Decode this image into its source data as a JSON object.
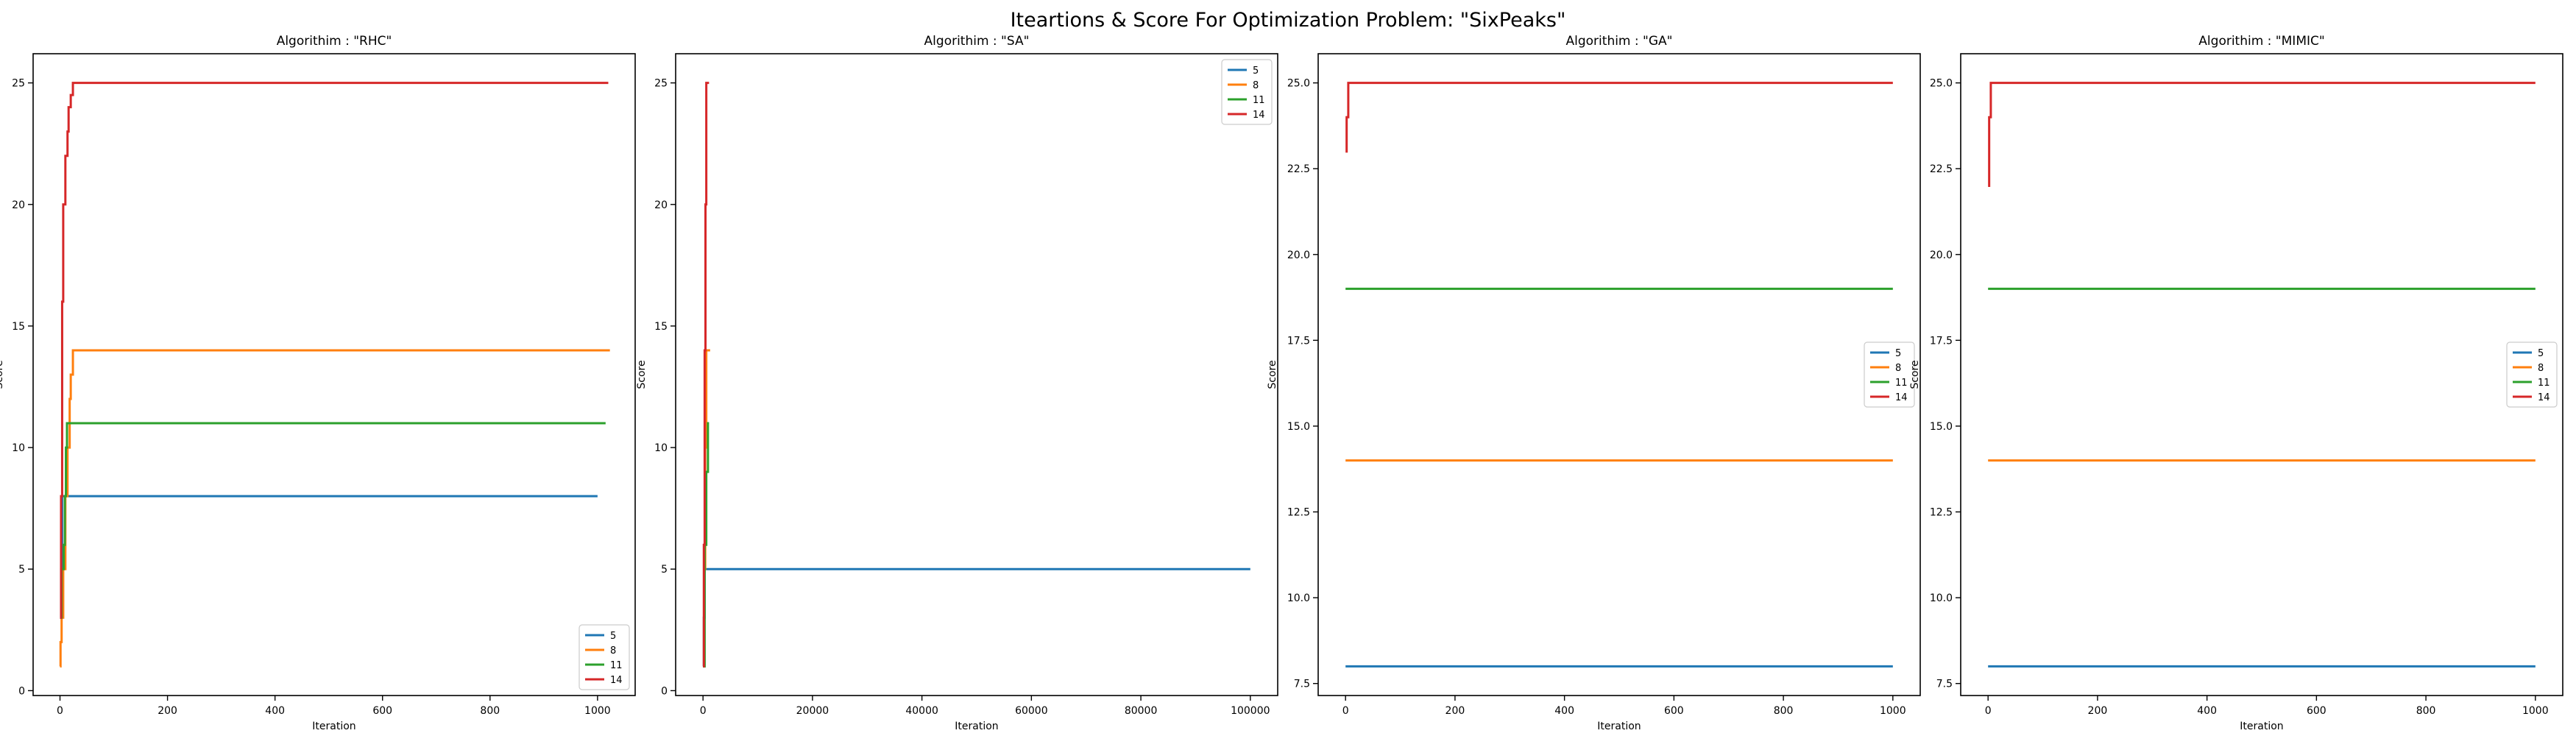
{
  "suptitle": "Iteartions & Score For Optimization Problem: \"SixPeaks\"",
  "legend_colors": {
    "5": "#1f77b4",
    "8": "#ff7f0e",
    "11": "#2ca02c",
    "14": "#d62728"
  },
  "chart_data": [
    {
      "type": "line",
      "title": "Algorithim : \"RHC\"",
      "xlabel": "Iteration",
      "ylabel": "Score",
      "xlim": [
        -50,
        1070
      ],
      "ylim": [
        -0.2,
        26.2
      ],
      "xticks": [
        0,
        200,
        400,
        600,
        800,
        1000
      ],
      "xtick_labels": [
        "0",
        "200",
        "400",
        "600",
        "800",
        "1000"
      ],
      "yticks": [
        0,
        5,
        10,
        15,
        20,
        25
      ],
      "ytick_labels": [
        "0",
        "5",
        "10",
        "15",
        "20",
        "25"
      ],
      "legend": "lower right",
      "series": [
        {
          "name": "5",
          "color": "#1f77b4",
          "x": [
            0,
            2,
            2,
            4,
            4,
            1000
          ],
          "y": [
            3,
            3,
            5,
            5,
            8,
            8
          ]
        },
        {
          "name": "8",
          "color": "#ff7f0e",
          "x": [
            0,
            1,
            1,
            3,
            3,
            6,
            6,
            10,
            10,
            14,
            14,
            18,
            18,
            20,
            20,
            24,
            24,
            1023
          ],
          "y": [
            1,
            1,
            2,
            2,
            3,
            3,
            5,
            5,
            8,
            8,
            10,
            10,
            12,
            12,
            13,
            13,
            14,
            14
          ]
        },
        {
          "name": "11",
          "color": "#2ca02c",
          "x": [
            0,
            3,
            3,
            7,
            7,
            9,
            9,
            11,
            11,
            13,
            13,
            1015
          ],
          "y": [
            3,
            3,
            5,
            5,
            6,
            6,
            8,
            8,
            10,
            10,
            11,
            11
          ]
        },
        {
          "name": "14",
          "color": "#d62728",
          "x": [
            0,
            2,
            2,
            4,
            4,
            6,
            6,
            10,
            10,
            14,
            14,
            16,
            16,
            20,
            20,
            24,
            24,
            1020
          ],
          "y": [
            3,
            3,
            8,
            8,
            16,
            16,
            20,
            20,
            22,
            22,
            23,
            23,
            24,
            24,
            24.5,
            24.5,
            25,
            25
          ]
        }
      ]
    },
    {
      "type": "line",
      "title": "Algorithim : \"SA\"",
      "xlabel": "Iteration",
      "ylabel": "Score",
      "xlim": [
        -5000,
        105000
      ],
      "ylim": [
        -0.2,
        26.2
      ],
      "xticks": [
        0,
        20000,
        40000,
        60000,
        80000,
        100000
      ],
      "xtick_labels": [
        "0",
        "20000",
        "40000",
        "60000",
        "80000",
        "100000"
      ],
      "yticks": [
        0,
        5,
        10,
        15,
        20,
        25
      ],
      "ytick_labels": [
        "0",
        "5",
        "10",
        "15",
        "20",
        "25"
      ],
      "legend": "upper right",
      "series": [
        {
          "name": "5",
          "color": "#1f77b4",
          "x": [
            0,
            150,
            150,
            300,
            300,
            100000
          ],
          "y": [
            1,
            1,
            3,
            3,
            5,
            5
          ]
        },
        {
          "name": "8",
          "color": "#ff7f0e",
          "x": [
            0,
            200,
            200,
            400,
            400,
            600,
            600,
            1300
          ],
          "y": [
            1,
            1,
            5,
            5,
            10,
            10,
            14,
            14
          ]
        },
        {
          "name": "11",
          "color": "#2ca02c",
          "x": [
            0,
            300,
            300,
            600,
            600,
            900,
            900,
            1100
          ],
          "y": [
            1,
            1,
            6,
            6,
            9,
            9,
            11,
            11
          ]
        },
        {
          "name": "14",
          "color": "#d62728",
          "x": [
            0,
            150,
            150,
            300,
            300,
            450,
            450,
            600,
            600,
            1100
          ],
          "y": [
            1,
            1,
            6,
            6,
            14,
            14,
            20,
            20,
            25,
            25
          ]
        }
      ]
    },
    {
      "type": "line",
      "title": "Algorithim : \"GA\"",
      "xlabel": "Iteration",
      "ylabel": "Score",
      "xlim": [
        -50,
        1050
      ],
      "ylim": [
        7.15,
        25.85
      ],
      "xticks": [
        0,
        200,
        400,
        600,
        800,
        1000
      ],
      "xtick_labels": [
        "0",
        "200",
        "400",
        "600",
        "800",
        "1000"
      ],
      "yticks": [
        7.5,
        10.0,
        12.5,
        15.0,
        17.5,
        20.0,
        22.5,
        25.0
      ],
      "ytick_labels": [
        "7.5",
        "10.0",
        "12.5",
        "15.0",
        "17.5",
        "20.0",
        "22.5",
        "25.0"
      ],
      "legend": "center right",
      "series": [
        {
          "name": "5",
          "color": "#1f77b4",
          "x": [
            0,
            1000
          ],
          "y": [
            8,
            8
          ]
        },
        {
          "name": "8",
          "color": "#ff7f0e",
          "x": [
            0,
            1000
          ],
          "y": [
            14,
            14
          ]
        },
        {
          "name": "11",
          "color": "#2ca02c",
          "x": [
            0,
            1000
          ],
          "y": [
            19,
            19
          ]
        },
        {
          "name": "14",
          "color": "#d62728",
          "x": [
            0,
            2,
            2,
            5,
            5,
            1000
          ],
          "y": [
            23,
            23,
            24,
            24,
            25,
            25
          ]
        }
      ]
    },
    {
      "type": "line",
      "title": "Algorithim : \"MIMIC\"",
      "xlabel": "Iteration",
      "ylabel": "Score",
      "xlim": [
        -50,
        1050
      ],
      "ylim": [
        7.15,
        25.85
      ],
      "xticks": [
        0,
        200,
        400,
        600,
        800,
        1000
      ],
      "xtick_labels": [
        "0",
        "200",
        "400",
        "600",
        "800",
        "1000"
      ],
      "yticks": [
        7.5,
        10.0,
        12.5,
        15.0,
        17.5,
        20.0,
        22.5,
        25.0
      ],
      "ytick_labels": [
        "7.5",
        "10.0",
        "12.5",
        "15.0",
        "17.5",
        "20.0",
        "22.5",
        "25.0"
      ],
      "legend": "center right",
      "series": [
        {
          "name": "5",
          "color": "#1f77b4",
          "x": [
            0,
            1000
          ],
          "y": [
            8,
            8
          ]
        },
        {
          "name": "8",
          "color": "#ff7f0e",
          "x": [
            0,
            1000
          ],
          "y": [
            14,
            14
          ]
        },
        {
          "name": "11",
          "color": "#2ca02c",
          "x": [
            0,
            1000
          ],
          "y": [
            19,
            19
          ]
        },
        {
          "name": "14",
          "color": "#d62728",
          "x": [
            0,
            2,
            2,
            5,
            5,
            1000
          ],
          "y": [
            22,
            22,
            24,
            24,
            25,
            25
          ]
        }
      ]
    }
  ]
}
